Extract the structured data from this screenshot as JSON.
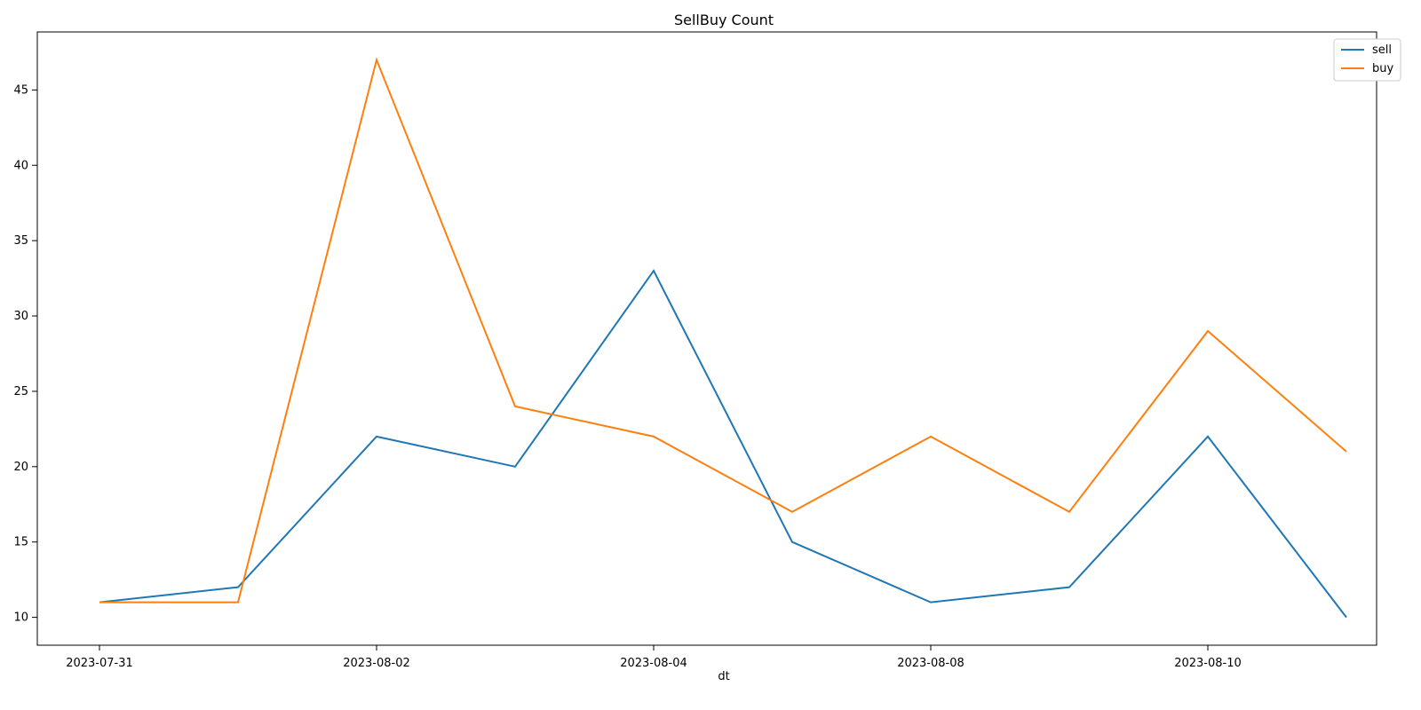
{
  "chart_data": {
    "type": "line",
    "title": "SellBuy Count",
    "xlabel": "dt",
    "ylabel": "",
    "ylim": [
      8.15,
      48.85
    ],
    "grid": false,
    "legend_position": "top-right",
    "x_points": [
      "2023-07-31",
      "",
      "2023-08-02",
      "",
      "2023-08-04",
      "",
      "2023-08-08",
      "",
      "2023-08-10",
      ""
    ],
    "xtick_labels": [
      {
        "index": 0,
        "label": "2023-07-31"
      },
      {
        "index": 2,
        "label": "2023-08-02"
      },
      {
        "index": 4,
        "label": "2023-08-04"
      },
      {
        "index": 6,
        "label": "2023-08-08"
      },
      {
        "index": 8,
        "label": "2023-08-10"
      }
    ],
    "ytick_labels": [
      10,
      15,
      20,
      25,
      30,
      35,
      40,
      45
    ],
    "series": [
      {
        "name": "sell",
        "color": "#1f77b4",
        "values": [
          11,
          12,
          22,
          20,
          33,
          15,
          11,
          12,
          22,
          10
        ]
      },
      {
        "name": "buy",
        "color": "#ff7f0e",
        "values": [
          11,
          11,
          47,
          24,
          22,
          17,
          22,
          17,
          29,
          21
        ]
      }
    ]
  }
}
